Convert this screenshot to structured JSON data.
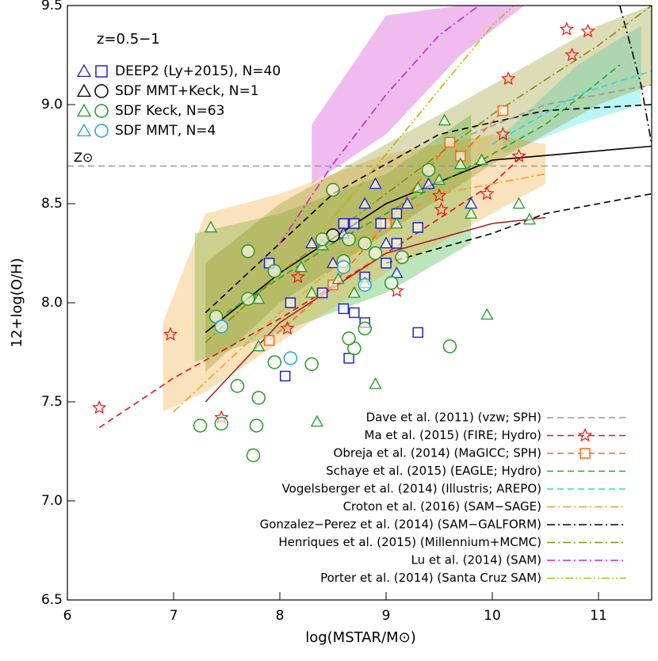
{
  "chart_data": {
    "type": "scatter",
    "annotation": "z=0.5−1",
    "xlabel": "log(MSTAR/M⊙)",
    "ylabel": "12+log(O/H)",
    "xlim": [
      6,
      11.5
    ],
    "ylim": [
      6.5,
      9.5
    ],
    "xticks": [
      6,
      7,
      8,
      9,
      10,
      11
    ],
    "yticks": [
      6.5,
      {
        "value": 7,
        "label": "7.0"
      },
      7.5,
      {
        "value": 8,
        "label": "8.0"
      },
      8.5,
      {
        "value": 9,
        "label": "9.0"
      },
      9.5
    ],
    "solar": {
      "value": 8.69,
      "label": "Z⊙",
      "color": "#999999"
    },
    "series": [
      {
        "name": "DEEP2 (Ly+2015), N=40",
        "color": "#2222cc",
        "marker": "square",
        "x": [
          7.9,
          8.1,
          8.05,
          8.4,
          8.6,
          8.6,
          8.65,
          8.7,
          8.8,
          8.8,
          8.95,
          9.0,
          9.1,
          9.3,
          9.3,
          8.7,
          9.1
        ],
        "values": [
          8.2,
          8.0,
          7.63,
          8.05,
          7.97,
          8.4,
          7.72,
          7.95,
          8.13,
          7.9,
          8.4,
          8.2,
          8.3,
          7.85,
          8.38,
          8.4,
          8.45
        ],
        "tri_x": [
          8.5,
          8.6,
          8.8,
          8.9,
          9.0,
          9.2,
          9.4,
          9.8,
          8.3,
          9.1
        ],
        "tri_values": [
          8.2,
          8.35,
          8.5,
          8.6,
          8.3,
          8.5,
          8.6,
          8.5,
          8.3,
          8.15
        ]
      },
      {
        "name": "SDF MMT+Keck, N=1",
        "color": "#000000",
        "marker": "circle",
        "x": [
          8.5
        ],
        "values": [
          8.34
        ],
        "tri_x": [],
        "tri_values": []
      },
      {
        "name": "SDF Keck, N=63",
        "color": "#229922",
        "marker": "circle",
        "x": [
          7.25,
          7.45,
          7.75,
          7.78,
          7.8,
          7.6,
          7.95,
          7.7,
          7.7,
          7.95,
          8.3,
          8.5,
          8.65,
          8.6,
          8.7,
          8.65,
          8.8,
          8.9,
          9.05,
          9.15,
          9.4,
          9.6,
          8.4,
          8.8,
          7.4
        ],
        "values": [
          7.38,
          7.39,
          7.23,
          7.38,
          7.52,
          7.58,
          7.7,
          8.26,
          8.02,
          8.16,
          7.69,
          8.57,
          8.32,
          8.21,
          7.77,
          7.82,
          8.3,
          8.25,
          8.1,
          8.23,
          8.67,
          7.78,
          8.32,
          7.87,
          7.93
        ],
        "tri_x": [
          7.35,
          7.8,
          8.2,
          8.3,
          8.35,
          8.4,
          8.55,
          8.8,
          8.9,
          9.1,
          9.3,
          9.5,
          9.55,
          9.8,
          9.9,
          10.25,
          10.35,
          9.95,
          9.7,
          8.7,
          7.8
        ],
        "tri_values": [
          8.38,
          8.02,
          8.18,
          8.05,
          7.4,
          8.29,
          8.12,
          8.1,
          7.59,
          8.4,
          8.58,
          8.62,
          8.92,
          8.45,
          8.72,
          8.5,
          8.42,
          7.94,
          8.7,
          8.05,
          7.78
        ]
      },
      {
        "name": "SDF MMT, N=4",
        "color": "#22a0d8",
        "marker": "circle",
        "x": [
          7.45,
          8.1,
          8.6,
          8.8
        ],
        "values": [
          7.88,
          7.72,
          8.18,
          8.09
        ],
        "tri_x": [],
        "tri_values": []
      }
    ],
    "models": [
      {
        "name": "Dave et al. (2011) (vzw; SPH)",
        "color": "#999999",
        "style": "dashed",
        "x": [
          9.8,
          10.5,
          11.5
        ],
        "values": [
          8.85,
          9.0,
          9.1
        ]
      },
      {
        "name": "Ma et al. (2015) (FIRE; Hydro)",
        "color": "#ee1111",
        "style": "dashed",
        "marker": "star",
        "x": [
          6.3,
          7,
          8,
          9,
          10,
          10.3
        ],
        "values": [
          7.37,
          7.62,
          7.92,
          8.25,
          8.6,
          8.75
        ],
        "marker_x": [
          6.3,
          6.97,
          7.45,
          8.07,
          8.17,
          9.5,
          9.52,
          9.95,
          10.1,
          10.15,
          10.25,
          10.7,
          10.75,
          10.9,
          9.1
        ],
        "marker_values": [
          7.47,
          7.84,
          7.42,
          7.87,
          8.13,
          8.54,
          8.47,
          8.55,
          8.85,
          9.13,
          8.74,
          9.38,
          9.25,
          9.37,
          8.06
        ]
      },
      {
        "name": "Obreja et al. (2014) (MaGICC; SPH)",
        "color": "#ff6611",
        "style": "dashed",
        "marker": "square",
        "x": [
          7.9,
          8.5,
          9.0,
          9.6,
          9.7,
          10.1
        ],
        "values": [
          7.81,
          8.09,
          8.4,
          8.81,
          8.74,
          8.97
        ],
        "marker_x": [
          7.9,
          8.5,
          9.0,
          9.6,
          9.7,
          10.1
        ],
        "marker_values": [
          7.81,
          8.09,
          8.4,
          8.81,
          8.74,
          8.97
        ]
      },
      {
        "name": "Schaye et al. (2015) (EAGLE; Hydro)",
        "color": "#22aa22",
        "style": "dashed",
        "x": [
          7.5,
          8.5,
          9.5,
          10.5,
          11.2
        ],
        "values": [
          7.95,
          8.3,
          8.6,
          8.9,
          9.2
        ],
        "band_x": [
          7.2,
          8,
          9,
          9.8
        ],
        "band_low": [
          7.7,
          7.85,
          8.05,
          8.3
        ],
        "band_high": [
          8.35,
          8.45,
          8.65,
          8.95
        ]
      },
      {
        "name": "Vogelsberger et al. (2014) (Illustris; AREPO)",
        "color": "#22dddd",
        "style": "dashed",
        "x": [
          10,
          10.8,
          11.5
        ],
        "values": [
          8.8,
          9.05,
          9.17
        ],
        "band_x": [
          10.1,
          10.8,
          11.4
        ],
        "band_low": [
          8.75,
          8.9,
          9.0
        ],
        "band_high": [
          8.85,
          9.2,
          9.4
        ]
      },
      {
        "name": "Croton et al. (2016) (SAM−SAGE)",
        "color": "#f0a020",
        "style": "dashdot",
        "x": [
          7,
          8,
          9,
          9.5,
          10,
          10.5
        ],
        "values": [
          7.45,
          7.95,
          8.4,
          8.55,
          8.6,
          8.65
        ],
        "band_x": [
          6.9,
          7.3,
          8,
          9,
          10,
          10.5
        ],
        "band_low": [
          7.45,
          7.55,
          7.8,
          8.15,
          8.45,
          8.6
        ],
        "band_high": [
          7.9,
          8.45,
          8.55,
          8.75,
          8.85,
          8.8
        ]
      },
      {
        "name": "Gonzalez−Perez et al. (2014) (SAM−GALFORM)",
        "color": "#000000",
        "style": "dashdot",
        "x": [
          11.2,
          11.4,
          11.5
        ],
        "values": [
          9.5,
          9.1,
          8.8
        ]
      },
      {
        "name": "Henriques et al. (2015) (Millennium+MCMC)",
        "color": "#8a8a10",
        "style": "dashdot",
        "x": [
          7.3,
          8,
          9,
          10,
          11,
          11.5
        ],
        "values": [
          7.8,
          8.15,
          8.55,
          8.95,
          9.3,
          9.5
        ],
        "band_x": [
          7.3,
          8,
          9,
          10,
          11,
          11.5
        ],
        "band_low": [
          7.65,
          8.0,
          8.35,
          8.7,
          9.0,
          9.1
        ],
        "band_high": [
          8.2,
          8.5,
          8.8,
          9.1,
          9.4,
          9.5
        ]
      },
      {
        "name": "Lu et al. (2014) (SAM)",
        "color": "#cc22cc",
        "style": "dashdot",
        "x": [
          8,
          8.5,
          9,
          9.5,
          10
        ],
        "values": [
          8.3,
          8.7,
          9.05,
          9.35,
          9.55
        ],
        "band_x": [
          8.3,
          9,
          9.7,
          10.3
        ],
        "band_low": [
          8.6,
          8.85,
          9.25,
          9.5
        ],
        "band_high": [
          8.9,
          9.45,
          9.5,
          9.5
        ]
      },
      {
        "name": "Porter et al. (2014) (Santa Cruz SAM)",
        "color": "#bbbb00",
        "style": "dashdotdot",
        "x": [
          8.3,
          9,
          10,
          10.3
        ],
        "values": [
          8.3,
          8.75,
          9.4,
          9.55
        ]
      }
    ],
    "fits": [
      {
        "color": "#000000",
        "style": "solid",
        "x": [
          7.3,
          8,
          9,
          10,
          11.5
        ],
        "values": [
          7.85,
          8.15,
          8.5,
          8.72,
          8.79
        ]
      },
      {
        "color": "#aa2222",
        "style": "solid",
        "x": [
          7.3,
          8,
          9,
          10,
          10.5
        ],
        "values": [
          7.5,
          7.9,
          8.25,
          8.4,
          8.43
        ]
      },
      {
        "color": "#000000",
        "style": "dashed",
        "x": [
          7.3,
          8.5,
          9.5,
          10.5,
          11.5
        ],
        "values": [
          7.95,
          8.55,
          8.85,
          8.97,
          9.0
        ]
      },
      {
        "color": "#000000",
        "style": "dashed",
        "x": [
          9,
          10,
          10.5,
          11.5
        ],
        "values": [
          8.2,
          8.35,
          8.45,
          8.55
        ]
      }
    ]
  }
}
